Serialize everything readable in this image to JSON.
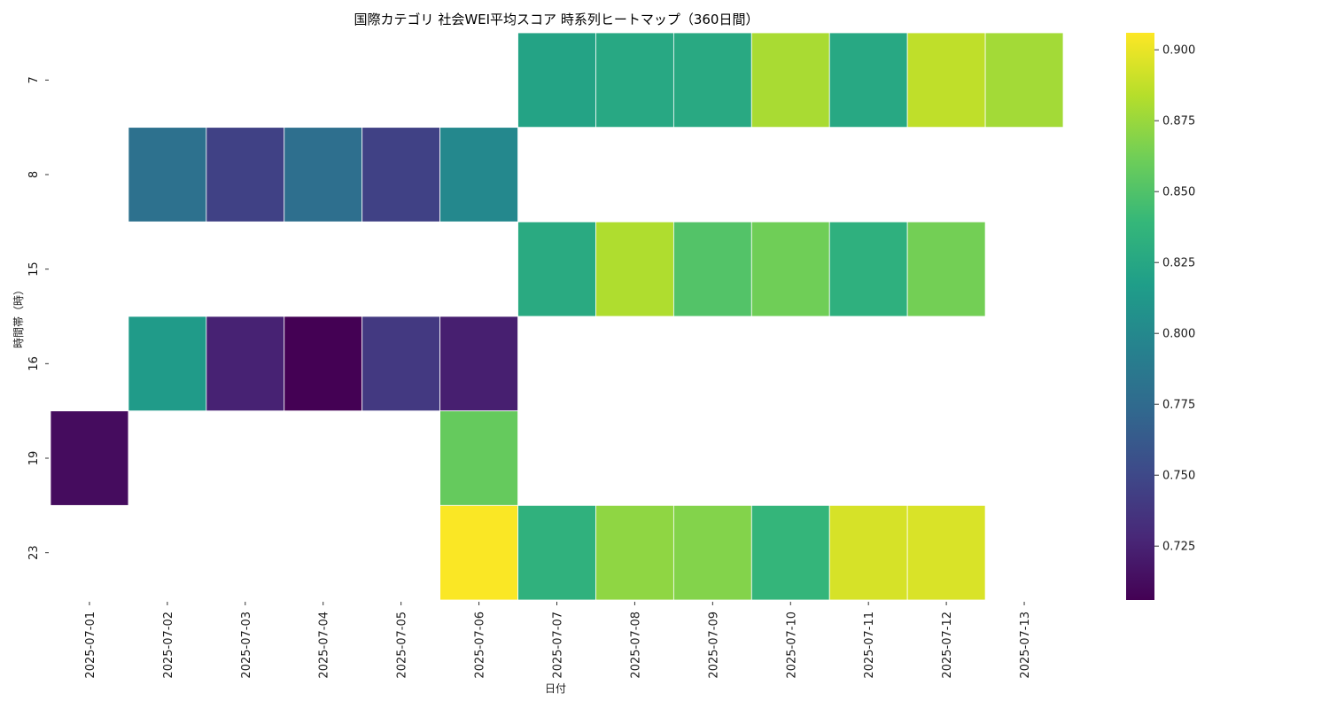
{
  "chart_data": {
    "type": "heatmap",
    "title": "国際カテゴリ 社会WEI平均スコア 時系列ヒートマップ（360日間）",
    "xlabel": "日付",
    "ylabel": "時間帯（時）",
    "x_categories": [
      "2025-07-01",
      "2025-07-02",
      "2025-07-03",
      "2025-07-04",
      "2025-07-05",
      "2025-07-06",
      "2025-07-07",
      "2025-07-08",
      "2025-07-09",
      "2025-07-10",
      "2025-07-11",
      "2025-07-12",
      "2025-07-13"
    ],
    "y_categories": [
      "7",
      "8",
      "15",
      "16",
      "19",
      "23"
    ],
    "values": [
      [
        null,
        null,
        null,
        null,
        null,
        null,
        0.822,
        0.826,
        0.827,
        0.88,
        0.826,
        0.887,
        0.878
      ],
      [
        null,
        0.78,
        0.745,
        0.779,
        0.745,
        0.8,
        null,
        null,
        null,
        null,
        null,
        null,
        null
      ],
      [
        null,
        null,
        null,
        null,
        null,
        null,
        0.828,
        0.882,
        0.851,
        0.862,
        0.833,
        0.863,
        null
      ],
      [
        null,
        0.815,
        0.725,
        0.706,
        0.74,
        0.723,
        null,
        null,
        null,
        null,
        null,
        null,
        null
      ],
      [
        0.712,
        null,
        null,
        null,
        null,
        0.858,
        null,
        null,
        null,
        null,
        null,
        null,
        null
      ],
      [
        null,
        null,
        null,
        null,
        null,
        0.905,
        0.834,
        0.872,
        0.868,
        0.838,
        0.894,
        0.895,
        null
      ]
    ],
    "colormap": "viridis",
    "vmin": 0.706,
    "vmax": 0.906,
    "colorbar_ticks": [
      "0.725",
      "0.750",
      "0.775",
      "0.800",
      "0.825",
      "0.850",
      "0.875",
      "0.900"
    ]
  }
}
